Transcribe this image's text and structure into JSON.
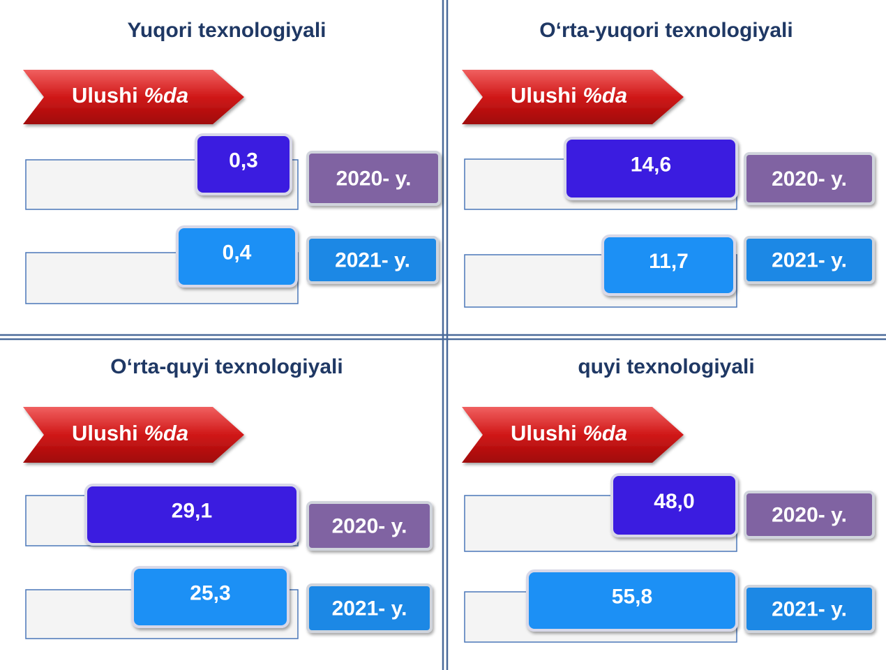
{
  "panels": [
    {
      "title": "Yuqori texnologiyali",
      "label": {
        "text": "Ulushi",
        "unit": "%da"
      },
      "rows": [
        {
          "value": "0,3",
          "year": "2020- y."
        },
        {
          "value": "0,4",
          "year": "2021- y."
        }
      ]
    },
    {
      "title": "O‘rta-yuqori texnologiyali",
      "label": {
        "text": "Ulushi",
        "unit": "%da"
      },
      "rows": [
        {
          "value": "14,6",
          "year": "2020- y."
        },
        {
          "value": "11,7",
          "year": "2021- y."
        }
      ]
    },
    {
      "title": "O‘rta-quyi texnologiyali",
      "label": {
        "text": "Ulushi",
        "unit": "%da"
      },
      "rows": [
        {
          "value": "29,1",
          "year": "2020- y."
        },
        {
          "value": "25,3",
          "year": "2021- y."
        }
      ]
    },
    {
      "title": "quyi texnologiyali",
      "label": {
        "text": "Ulushi",
        "unit": "%da"
      },
      "rows": [
        {
          "value": "48,0",
          "year": "2020- y."
        },
        {
          "value": "55,8",
          "year": "2021- y."
        }
      ]
    }
  ]
}
